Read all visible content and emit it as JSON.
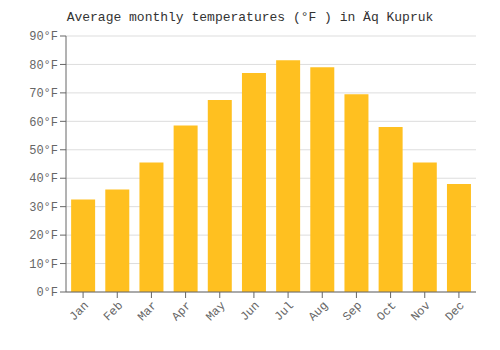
{
  "chart_data": {
    "type": "bar",
    "title": "Average monthly temperatures (°F ) in Äq Kupruk",
    "categories": [
      "Jan",
      "Feb",
      "Mar",
      "Apr",
      "May",
      "Jun",
      "Jul",
      "Aug",
      "Sep",
      "Oct",
      "Nov",
      "Dec"
    ],
    "values": [
      32.5,
      36,
      45.5,
      58.5,
      67.5,
      77,
      81.5,
      79,
      69.5,
      58,
      45.5,
      38
    ],
    "color": "#FFC020",
    "ylim": [
      0,
      90
    ],
    "yticks": [
      {
        "value": 0,
        "label": "0°F"
      },
      {
        "value": 10,
        "label": "10°F"
      },
      {
        "value": 20,
        "label": "20°F"
      },
      {
        "value": 30,
        "label": "30°F"
      },
      {
        "value": 40,
        "label": "40°F"
      },
      {
        "value": 50,
        "label": "50°F"
      },
      {
        "value": 60,
        "label": "60°F"
      },
      {
        "value": 70,
        "label": "70°F"
      },
      {
        "value": 80,
        "label": "80°F"
      },
      {
        "value": 90,
        "label": "90°F"
      }
    ],
    "grid": true
  }
}
